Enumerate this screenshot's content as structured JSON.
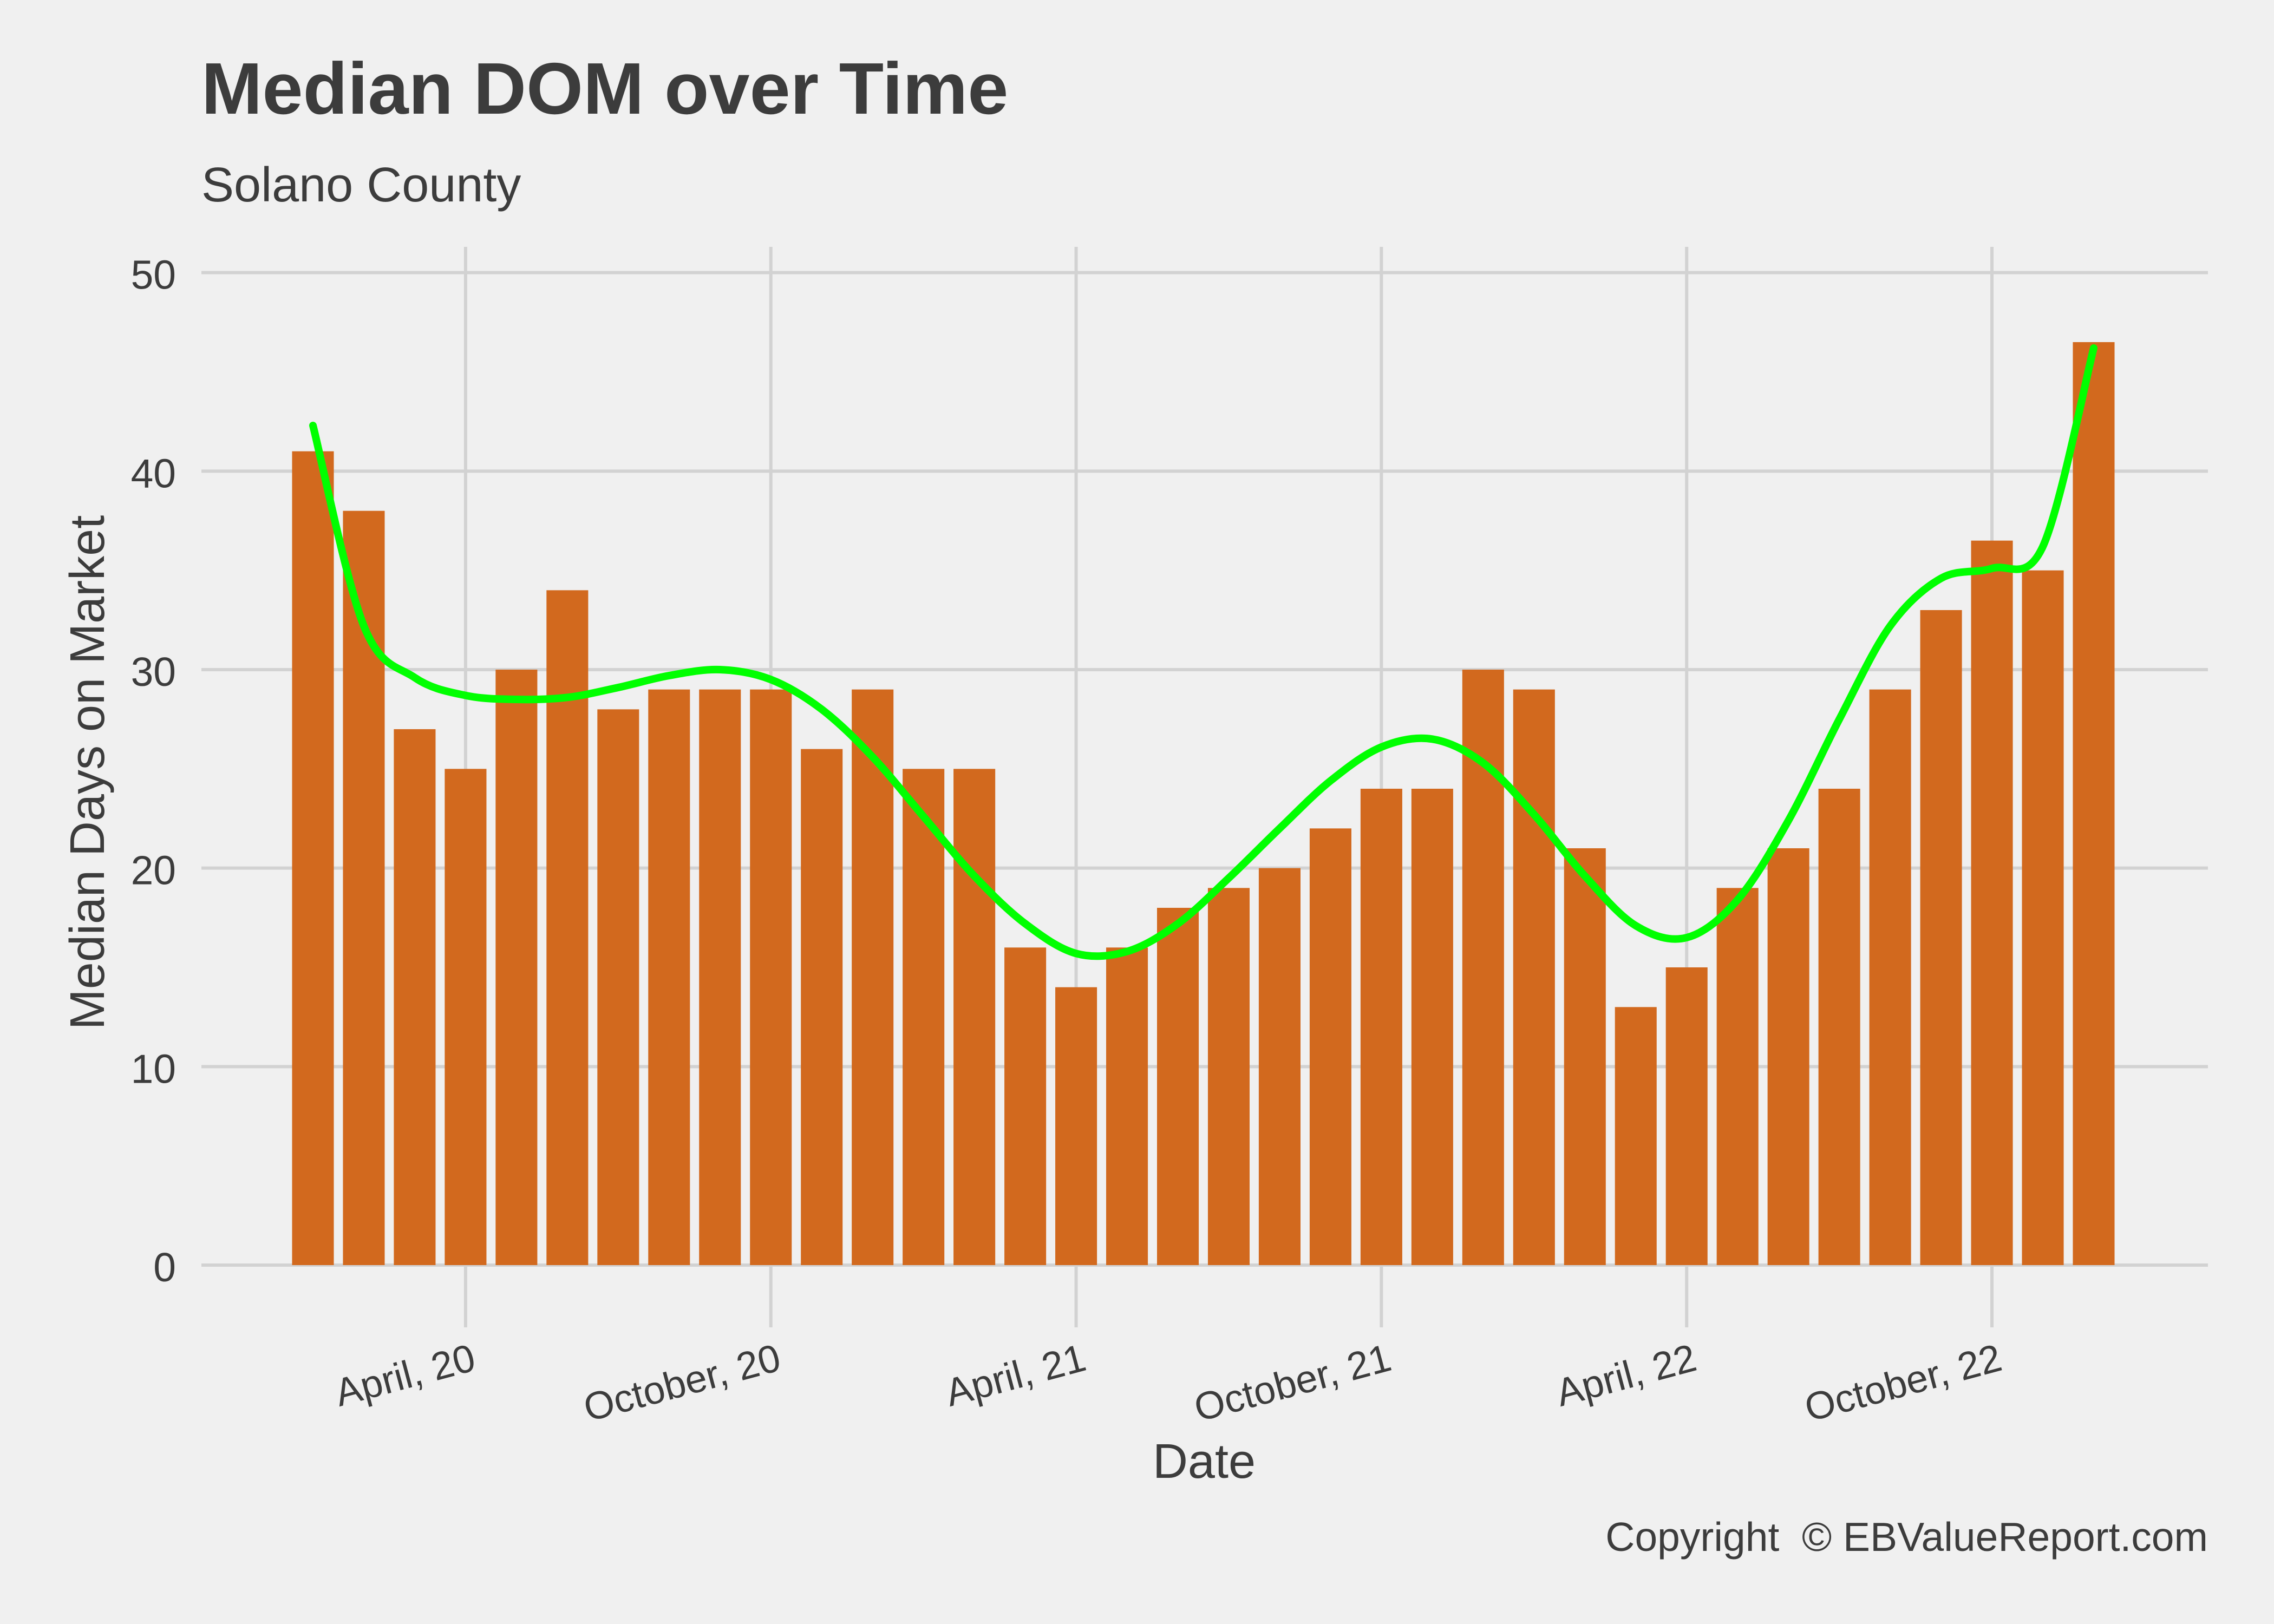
{
  "chart_data": {
    "type": "bar",
    "title": "Median DOM over Time",
    "subtitle": "Solano County",
    "xlabel": "Date",
    "ylabel": "Median Days on Market",
    "caption": "Copyright  © EBValueReport.com",
    "x": [
      "2020-01",
      "2020-02",
      "2020-03",
      "2020-04",
      "2020-05",
      "2020-06",
      "2020-07",
      "2020-08",
      "2020-09",
      "2020-10",
      "2020-11",
      "2020-12",
      "2021-01",
      "2021-02",
      "2021-03",
      "2021-04",
      "2021-05",
      "2021-06",
      "2021-07",
      "2021-08",
      "2021-09",
      "2021-10",
      "2021-11",
      "2021-12",
      "2022-01",
      "2022-02",
      "2022-03",
      "2022-04",
      "2022-05",
      "2022-06",
      "2022-07",
      "2022-08",
      "2022-09",
      "2022-10",
      "2022-11",
      "2022-12"
    ],
    "values": [
      41,
      38,
      27,
      25,
      30,
      34,
      28,
      29,
      29,
      29,
      26,
      29,
      25,
      25,
      16,
      14,
      16,
      18,
      19,
      20,
      22,
      24,
      24,
      30,
      29,
      21,
      13,
      15,
      19,
      21,
      24,
      29,
      33,
      36.5,
      35,
      46.5
    ],
    "trend": [
      42.3,
      32.2,
      29.6,
      28.7,
      28.5,
      28.6,
      29.1,
      29.7,
      30.0,
      29.5,
      28.0,
      25.6,
      22.6,
      19.6,
      17.2,
      15.7,
      15.8,
      17.2,
      19.5,
      22.0,
      24.4,
      26.1,
      26.5,
      25.3,
      22.7,
      19.6,
      17.1,
      16.5,
      18.4,
      22.4,
      27.5,
      32.2,
      34.6,
      35.1,
      36.2,
      46.2
    ],
    "xticks": [
      "April, 20",
      "October, 20",
      "April, 21",
      "October, 21",
      "April, 22",
      "October, 22"
    ],
    "yticks": [
      0,
      10,
      20,
      30,
      40,
      50
    ],
    "ylim": [
      -1.5,
      51.3
    ],
    "grid": true,
    "colors": {
      "bar": "#d2691e",
      "trend": "#00ff00",
      "background": "#f0f0f0",
      "grid": "#d2d2d2",
      "text": "#3c3c3c"
    }
  }
}
